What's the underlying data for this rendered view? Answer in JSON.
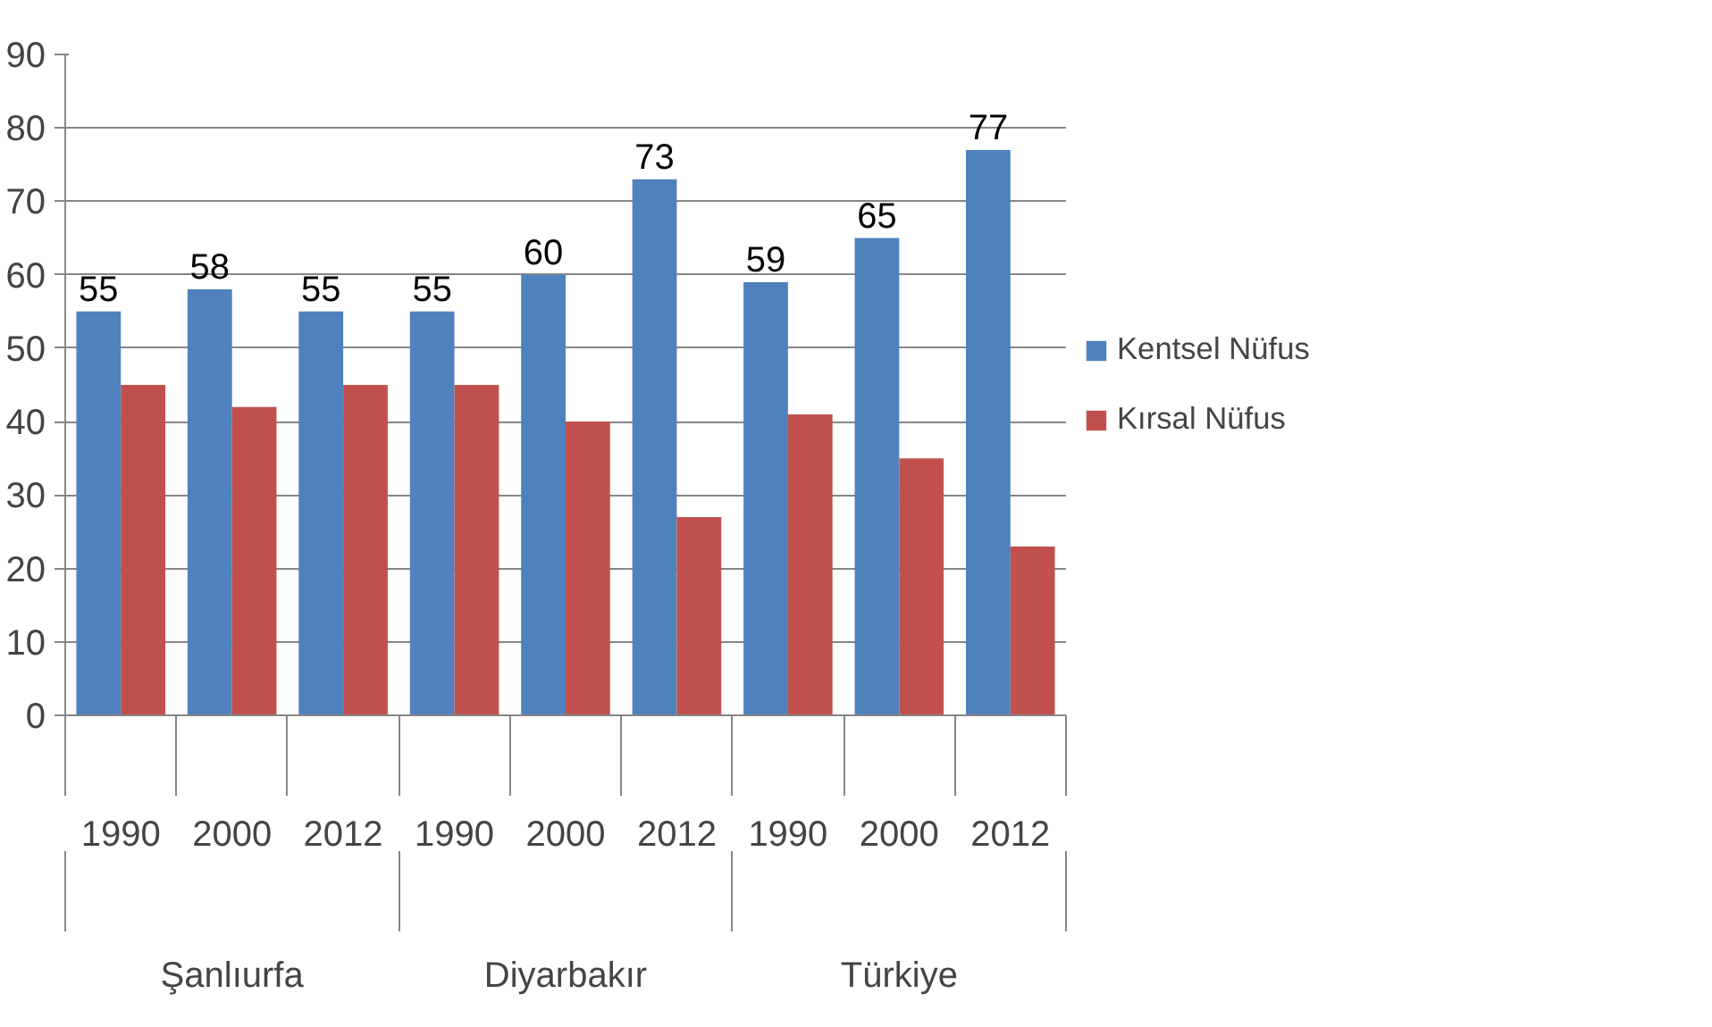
{
  "chart_data": {
    "type": "bar",
    "categories": [
      "1990",
      "2000",
      "2012",
      "1990",
      "2000",
      "2012",
      "1990",
      "2000",
      "2012"
    ],
    "annotations": [
      "Şanlıurfa",
      "Diyarbakır",
      "Türkiye"
    ],
    "series": [
      {
        "name": "Kentsel Nüfus",
        "color": "#4f81bd",
        "values": [
          55,
          58,
          55,
          55,
          60,
          73,
          59,
          65,
          77
        ],
        "value_labels": [
          "55",
          "58",
          "55",
          "55",
          "60",
          "73",
          "59",
          "65",
          "77"
        ]
      },
      {
        "name": "Kırsal Nüfus",
        "color": "#c0504d",
        "values": [
          45,
          42,
          45,
          45,
          40,
          27,
          41,
          35,
          23
        ]
      }
    ],
    "ylim": [
      0,
      90
    ],
    "yticks": [
      0,
      10,
      20,
      30,
      40,
      50,
      60,
      70,
      80,
      90
    ],
    "grid": "y",
    "legend": "right"
  }
}
